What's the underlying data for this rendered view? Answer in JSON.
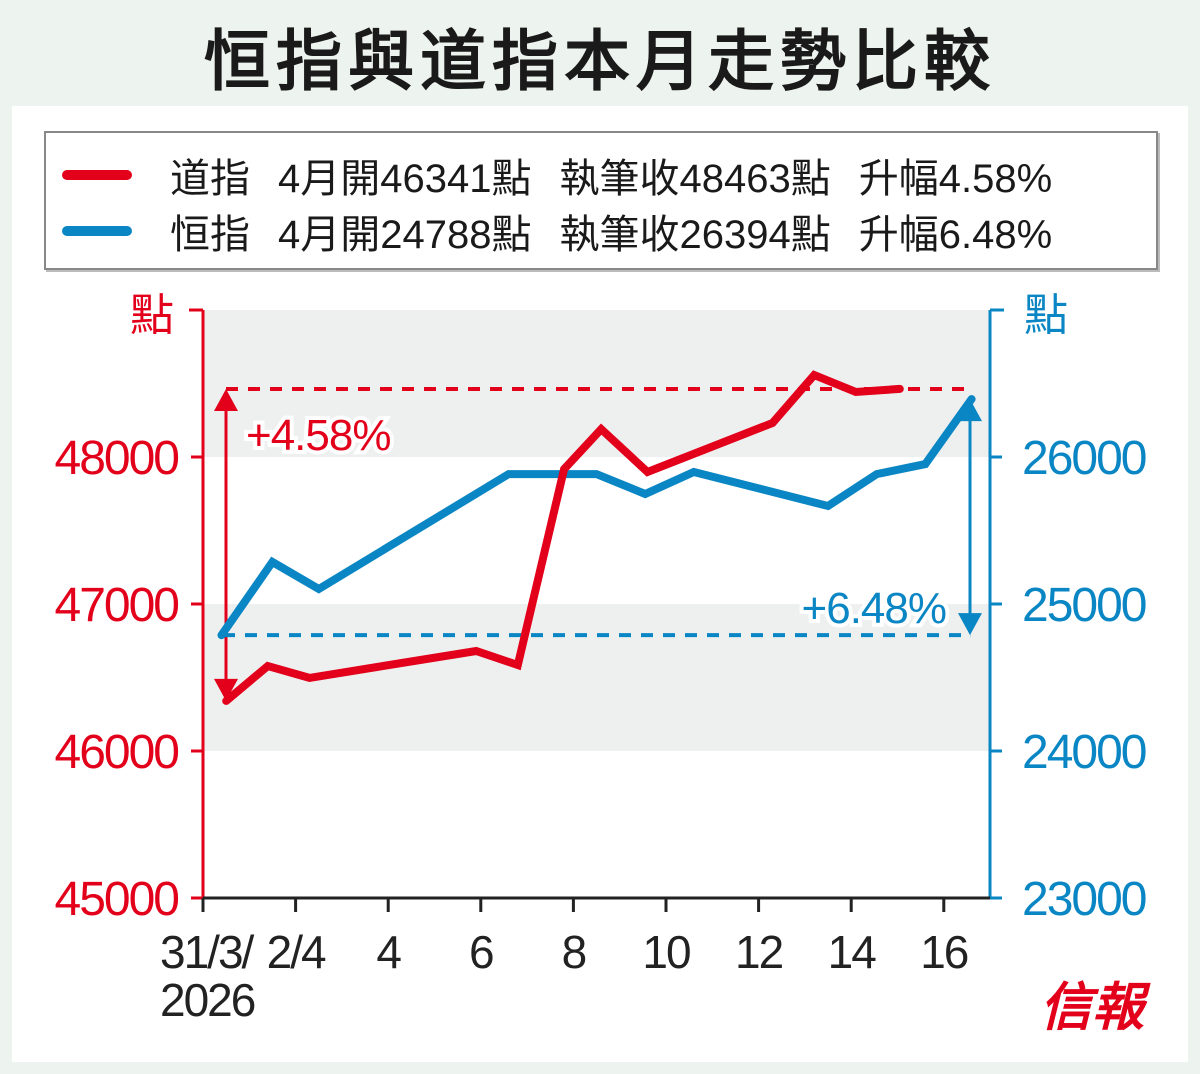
{
  "title": "恒指與道指本月走勢比較",
  "legend": [
    {
      "name": "道指",
      "open": "4月開46341點",
      "close": "執筆收48463點",
      "change": "升幅4.58%",
      "color": "#e3001b"
    },
    {
      "name": "恒指",
      "open": "4月開24788點",
      "close": "執筆收26394點",
      "change": "升幅6.48%",
      "color": "#0a86c4"
    }
  ],
  "logo": "信報",
  "chart_data": {
    "type": "line",
    "title": "恒指與道指本月走勢比較",
    "xlabel": "",
    "x_ticks": [
      {
        "day": 0,
        "label": "31/3/",
        "label2": "2026"
      },
      {
        "day": 2,
        "label": "2/4"
      },
      {
        "day": 4,
        "label": "4"
      },
      {
        "day": 6,
        "label": "6"
      },
      {
        "day": 8,
        "label": "8"
      },
      {
        "day": 10,
        "label": "10"
      },
      {
        "day": 12,
        "label": "12"
      },
      {
        "day": 14,
        "label": "14"
      },
      {
        "day": 16,
        "label": "16"
      }
    ],
    "xlim": [
      0,
      17
    ],
    "y_left": {
      "label": "點",
      "ticks": [
        "45000",
        "46000",
        "47000",
        "48000"
      ],
      "tick_values": [
        45000,
        46000,
        47000,
        48000
      ],
      "ylim": [
        45000,
        49000
      ],
      "color": "#e3001b"
    },
    "y_right": {
      "label": "點",
      "ticks": [
        "23000",
        "24000",
        "25000",
        "26000"
      ],
      "tick_values": [
        23000,
        24000,
        25000,
        26000
      ],
      "ylim": [
        23000,
        27000
      ],
      "color": "#0a86c4"
    },
    "bands": [
      [
        46000,
        47000
      ],
      [
        48000,
        49000
      ]
    ],
    "series": [
      {
        "name": "道指",
        "axis": "left",
        "color": "#e3001b",
        "x": [
          0.5,
          1.4,
          2.3,
          5.9,
          6.8,
          7.8,
          8.6,
          9.6,
          12.3,
          13.2,
          14.1,
          15.05
        ],
        "y": [
          46341,
          46578,
          46497,
          46680,
          46585,
          47918,
          48190,
          47898,
          48231,
          48558,
          48442,
          48463
        ],
        "ref_open": 46341,
        "ref_close": 48463,
        "annotation": "+4.58%"
      },
      {
        "name": "恒指",
        "axis": "right",
        "color": "#0a86c4",
        "x": [
          0.4,
          1.5,
          2.5,
          6.6,
          8.5,
          9.55,
          10.6,
          13.5,
          14.55,
          15.6,
          16.6
        ],
        "y": [
          24788,
          25286,
          25102,
          25884,
          25884,
          25748,
          25898,
          25667,
          25884,
          25952,
          26394
        ],
        "ref_open": 24788,
        "ref_close": 26394,
        "annotation": "+6.48%"
      }
    ]
  }
}
